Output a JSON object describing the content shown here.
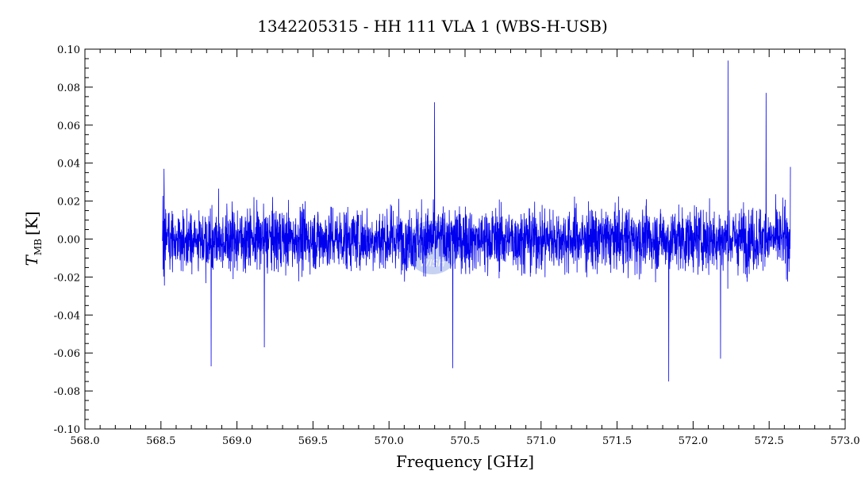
{
  "chart_data": {
    "type": "line",
    "title": "1342205315 - HH 111 VLA 1 (WBS-H-USB)",
    "xlabel": "Frequency [GHz]",
    "ylabel_main": "T",
    "ylabel_sub": "MB",
    "ylabel_unit": "[K]",
    "xlim": [
      568.0,
      573.0
    ],
    "ylim": [
      -0.1,
      0.1
    ],
    "x_ticks": [
      "568.0",
      "569.0",
      "569.5",
      "570.0",
      "570.5",
      "571.0",
      "571.5",
      "572.0",
      "572.5",
      "573.0",
      "568.5"
    ],
    "x_tick_values": [
      568.0,
      569.0,
      569.5,
      570.0,
      570.5,
      571.0,
      571.5,
      572.0,
      572.5,
      573.0,
      568.5
    ],
    "y_ticks": [
      "0.10",
      "0.08",
      "0.06",
      "0.04",
      "0.02",
      "0.00",
      "-0.02",
      "-0.04",
      "-0.06",
      "-0.08",
      "-0.10"
    ],
    "y_tick_values": [
      0.1,
      0.08,
      0.06,
      0.04,
      0.02,
      0.0,
      -0.02,
      -0.04,
      -0.06,
      -0.08,
      -0.1
    ],
    "series": [
      {
        "color": "#0000ee",
        "x_range": [
          568.51,
          572.64
        ],
        "noise_sigma": 0.015,
        "notable_points": [
          {
            "x": 568.52,
            "y": 0.037
          },
          {
            "x": 568.83,
            "y": -0.067
          },
          {
            "x": 569.18,
            "y": -0.057
          },
          {
            "x": 570.3,
            "y": 0.072
          },
          {
            "x": 570.42,
            "y": -0.068
          },
          {
            "x": 571.84,
            "y": -0.075
          },
          {
            "x": 572.18,
            "y": -0.063
          },
          {
            "x": 572.23,
            "y": 0.094
          },
          {
            "x": 572.48,
            "y": 0.077
          },
          {
            "x": 572.64,
            "y": 0.038
          }
        ]
      }
    ],
    "watermark": "WISH",
    "grid": false
  }
}
